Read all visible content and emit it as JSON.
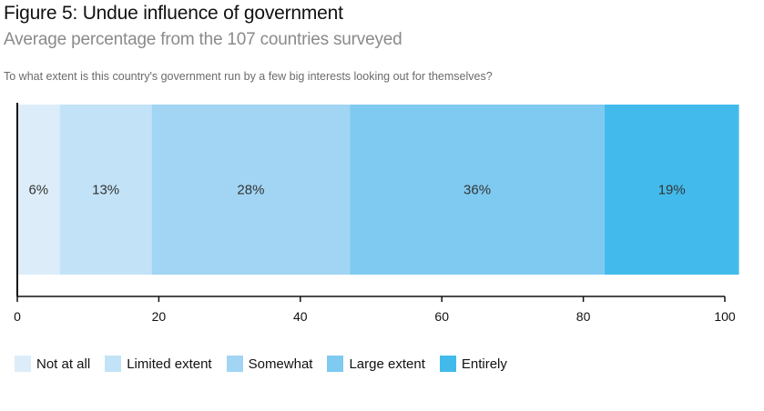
{
  "chart_data": {
    "type": "bar",
    "orientation": "horizontal-stacked",
    "title": "Figure 5: Undue influence of government",
    "subtitle": "Average percentage from the 107 countries surveyed",
    "question": "To what extent is this country's government run by a few big interests looking out for themselves?",
    "categories": [
      "Not at all",
      "Limited extent",
      "Somewhat",
      "Large extent",
      "Entirely"
    ],
    "values": [
      6,
      13,
      28,
      36,
      19
    ],
    "value_labels": [
      "6%",
      "13%",
      "28%",
      "36%",
      "19%"
    ],
    "colors": [
      "#dcedf9",
      "#c2e3f7",
      "#a1d5f3",
      "#7ecaf1",
      "#42bbec"
    ],
    "xlim": [
      0,
      100
    ],
    "xticks": [
      0,
      20,
      40,
      60,
      80,
      100
    ],
    "tick_labels": [
      "0",
      "20",
      "40",
      "60",
      "80",
      "100"
    ],
    "legend_position": "bottom-left",
    "grid": false
  }
}
